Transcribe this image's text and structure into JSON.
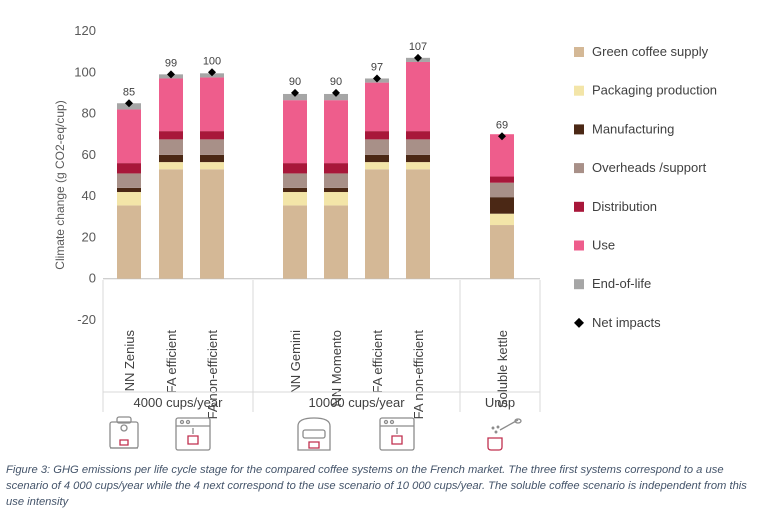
{
  "chart_data": {
    "type": "stacked bar",
    "ylabel": "Climate change (g CO2-eq/cup)",
    "ylim": [
      -20,
      120
    ],
    "yticks": [
      -20,
      0,
      20,
      40,
      60,
      80,
      100,
      120
    ],
    "categories": [
      "NN Zenius",
      "FA efficient",
      "FA non-efficient",
      "NN Gemini",
      "NN Momento",
      "FA efficient",
      "FA non-efficient",
      "Soluble kettle"
    ],
    "groups": [
      {
        "label": "4000 cups/year",
        "members": [
          0,
          1,
          2
        ]
      },
      {
        "label": "10000 cups/year",
        "members": [
          3,
          4,
          5,
          6
        ]
      },
      {
        "label": "Unsp",
        "members": [
          7
        ]
      }
    ],
    "series": [
      {
        "name": "Green coffee supply",
        "color": "#d4b896",
        "values": [
          35.5,
          53,
          53,
          35.5,
          35.5,
          53,
          53,
          26
        ]
      },
      {
        "name": "Packaging production",
        "color": "#f3e5a8",
        "values": [
          6.5,
          3.5,
          3.5,
          6.5,
          6.5,
          3.5,
          3.5,
          5.5
        ]
      },
      {
        "name": "Manufacturing",
        "color": "#4b2815",
        "values": [
          2,
          3.5,
          3.5,
          2,
          2,
          3.5,
          3.5,
          8
        ]
      },
      {
        "name": "Overheads /support",
        "color": "#a89088",
        "values": [
          7,
          7.5,
          7.5,
          7,
          7,
          7.5,
          7.5,
          7
        ]
      },
      {
        "name": "Distribution",
        "color": "#a8173a",
        "values": [
          5,
          4,
          4,
          5,
          5,
          4,
          4,
          3
        ]
      },
      {
        "name": "Use",
        "color": "#ee5d8c",
        "values": [
          26,
          25.5,
          26,
          30.5,
          30.5,
          23.5,
          33.5,
          20.5
        ]
      },
      {
        "name": "End-of-life",
        "color": "#a6a6a6",
        "values": [
          3,
          2,
          2,
          3,
          3,
          2,
          2,
          0
        ]
      }
    ],
    "net_impacts": {
      "name": "Net impacts",
      "values": [
        85,
        99,
        100,
        90,
        90,
        97,
        107,
        69
      ]
    },
    "legend_position": "right"
  },
  "caption": "Figure 3: GHG emissions per life cycle stage for the compared coffee systems on the French market. The three first systems correspond to a use scenario of 4 000 cups/year while the 4 next correspond to the use scenario of 10 000 cups/year. The soluble coffee scenario is independent from this use intensity",
  "icons": [
    "coffee-pod-machine-icon",
    "fully-automatic-machine-icon",
    "coffee-pod-machine-icon",
    "fully-automatic-machine-icon",
    "soluble-coffee-cup-icon"
  ]
}
